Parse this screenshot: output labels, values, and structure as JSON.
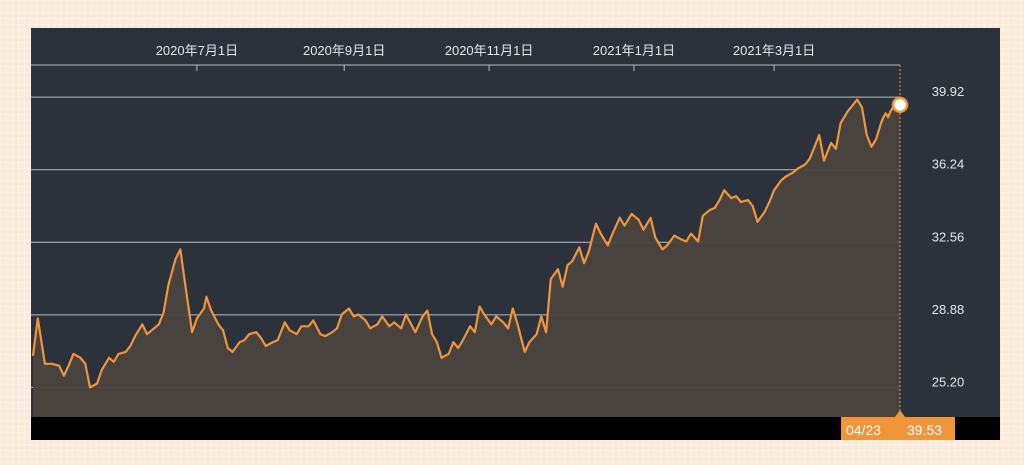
{
  "chart_data": {
    "type": "area",
    "x_tick_labels": [
      "2020年7月1日",
      "2020年9月1日",
      "2020年11月1日",
      "2021年1月1日",
      "2021年3月1日"
    ],
    "x_tick_dates": [
      "2020-07-01",
      "2020-09-01",
      "2020-11-01",
      "2021-01-01",
      "2021-03-01"
    ],
    "x_range": [
      "2020-04-23",
      "2021-04-23"
    ],
    "y_tick_labels": [
      "39.92",
      "36.24",
      "32.56",
      "28.88",
      "25.20"
    ],
    "y_ticks": [
      39.92,
      36.24,
      32.56,
      28.88,
      25.2
    ],
    "ylim": [
      23.7,
      41.6
    ],
    "grid": "horizontal",
    "series": [
      {
        "points": [
          [
            "2020-04-23",
            26.8
          ],
          [
            "2020-04-25",
            28.7
          ],
          [
            "2020-04-28",
            26.4
          ],
          [
            "2020-05-01",
            26.4
          ],
          [
            "2020-05-04",
            26.3
          ],
          [
            "2020-05-06",
            25.8
          ],
          [
            "2020-05-08",
            26.3
          ],
          [
            "2020-05-10",
            26.9
          ],
          [
            "2020-05-13",
            26.7
          ],
          [
            "2020-05-15",
            26.4
          ],
          [
            "2020-05-17",
            25.2
          ],
          [
            "2020-05-20",
            25.4
          ],
          [
            "2020-05-22",
            26.1
          ],
          [
            "2020-05-25",
            26.7
          ],
          [
            "2020-05-27",
            26.5
          ],
          [
            "2020-05-29",
            26.9
          ],
          [
            "2020-06-01",
            27.0
          ],
          [
            "2020-06-03",
            27.3
          ],
          [
            "2020-06-05",
            27.8
          ],
          [
            "2020-06-08",
            28.4
          ],
          [
            "2020-06-10",
            27.9
          ],
          [
            "2020-06-13",
            28.2
          ],
          [
            "2020-06-15",
            28.4
          ],
          [
            "2020-06-17",
            29.0
          ],
          [
            "2020-06-19",
            30.4
          ],
          [
            "2020-06-22",
            31.7
          ],
          [
            "2020-06-24",
            32.2
          ],
          [
            "2020-06-26",
            30.5
          ],
          [
            "2020-06-29",
            28.0
          ],
          [
            "2020-07-01",
            28.7
          ],
          [
            "2020-07-04",
            29.2
          ],
          [
            "2020-07-05",
            29.8
          ],
          [
            "2020-07-07",
            29.1
          ],
          [
            "2020-07-10",
            28.4
          ],
          [
            "2020-07-12",
            28.1
          ],
          [
            "2020-07-14",
            27.2
          ],
          [
            "2020-07-16",
            27.0
          ],
          [
            "2020-07-19",
            27.5
          ],
          [
            "2020-07-21",
            27.6
          ],
          [
            "2020-07-23",
            27.9
          ],
          [
            "2020-07-26",
            28.0
          ],
          [
            "2020-07-28",
            27.7
          ],
          [
            "2020-07-30",
            27.3
          ],
          [
            "2020-08-02",
            27.5
          ],
          [
            "2020-08-04",
            27.6
          ],
          [
            "2020-08-07",
            28.5
          ],
          [
            "2020-08-09",
            28.1
          ],
          [
            "2020-08-12",
            27.9
          ],
          [
            "2020-08-14",
            28.3
          ],
          [
            "2020-08-17",
            28.3
          ],
          [
            "2020-08-19",
            28.6
          ],
          [
            "2020-08-22",
            27.9
          ],
          [
            "2020-08-24",
            27.8
          ],
          [
            "2020-08-27",
            28.0
          ],
          [
            "2020-08-29",
            28.2
          ],
          [
            "2020-08-31",
            28.9
          ],
          [
            "2020-09-03",
            29.2
          ],
          [
            "2020-09-05",
            28.8
          ],
          [
            "2020-09-07",
            28.9
          ],
          [
            "2020-09-10",
            28.6
          ],
          [
            "2020-09-12",
            28.2
          ],
          [
            "2020-09-15",
            28.4
          ],
          [
            "2020-09-17",
            28.8
          ],
          [
            "2020-09-20",
            28.3
          ],
          [
            "2020-09-22",
            28.5
          ],
          [
            "2020-09-25",
            28.2
          ],
          [
            "2020-09-27",
            28.9
          ],
          [
            "2020-10-01",
            28.0
          ],
          [
            "2020-10-04",
            28.8
          ],
          [
            "2020-10-06",
            29.1
          ],
          [
            "2020-10-08",
            27.9
          ],
          [
            "2020-10-10",
            27.5
          ],
          [
            "2020-10-12",
            26.7
          ],
          [
            "2020-10-15",
            26.9
          ],
          [
            "2020-10-17",
            27.5
          ],
          [
            "2020-10-19",
            27.2
          ],
          [
            "2020-10-21",
            27.6
          ],
          [
            "2020-10-24",
            28.3
          ],
          [
            "2020-10-26",
            28.0
          ],
          [
            "2020-10-28",
            29.3
          ],
          [
            "2020-10-30",
            28.9
          ],
          [
            "2020-11-02",
            28.4
          ],
          [
            "2020-11-04",
            28.8
          ],
          [
            "2020-11-07",
            28.5
          ],
          [
            "2020-11-09",
            28.2
          ],
          [
            "2020-11-11",
            29.2
          ],
          [
            "2020-11-13",
            28.4
          ],
          [
            "2020-11-16",
            27.0
          ],
          [
            "2020-11-18",
            27.5
          ],
          [
            "2020-11-21",
            27.9
          ],
          [
            "2020-11-23",
            28.8
          ],
          [
            "2020-11-25",
            28.0
          ],
          [
            "2020-11-27",
            30.7
          ],
          [
            "2020-11-30",
            31.2
          ],
          [
            "2020-12-02",
            30.3
          ],
          [
            "2020-12-04",
            31.4
          ],
          [
            "2020-12-06",
            31.6
          ],
          [
            "2020-12-09",
            32.3
          ],
          [
            "2020-12-11",
            31.5
          ],
          [
            "2020-12-13",
            32.1
          ],
          [
            "2020-12-16",
            33.5
          ],
          [
            "2020-12-18",
            33.0
          ],
          [
            "2020-12-21",
            32.4
          ],
          [
            "2020-12-23",
            33.0
          ],
          [
            "2020-12-26",
            33.8
          ],
          [
            "2020-12-28",
            33.4
          ],
          [
            "2020-12-31",
            34.0
          ],
          [
            "2021-01-03",
            33.7
          ],
          [
            "2021-01-05",
            33.2
          ],
          [
            "2021-01-08",
            33.8
          ],
          [
            "2021-01-10",
            32.8
          ],
          [
            "2021-01-13",
            32.2
          ],
          [
            "2021-01-15",
            32.4
          ],
          [
            "2021-01-18",
            32.9
          ],
          [
            "2021-01-21",
            32.7
          ],
          [
            "2021-01-23",
            32.6
          ],
          [
            "2021-01-25",
            33.0
          ],
          [
            "2021-01-28",
            32.6
          ],
          [
            "2021-01-30",
            33.9
          ],
          [
            "2021-02-02",
            34.2
          ],
          [
            "2021-02-04",
            34.3
          ],
          [
            "2021-02-06",
            34.7
          ],
          [
            "2021-02-08",
            35.2
          ],
          [
            "2021-02-11",
            34.8
          ],
          [
            "2021-02-13",
            34.9
          ],
          [
            "2021-02-15",
            34.6
          ],
          [
            "2021-02-18",
            34.7
          ],
          [
            "2021-02-20",
            34.4
          ],
          [
            "2021-02-22",
            33.6
          ],
          [
            "2021-02-25",
            34.1
          ],
          [
            "2021-02-27",
            34.6
          ],
          [
            "2021-03-01",
            35.2
          ],
          [
            "2021-03-04",
            35.7
          ],
          [
            "2021-03-06",
            35.9
          ],
          [
            "2021-03-09",
            36.1
          ],
          [
            "2021-03-11",
            36.3
          ],
          [
            "2021-03-14",
            36.5
          ],
          [
            "2021-03-16",
            36.8
          ],
          [
            "2021-03-18",
            37.4
          ],
          [
            "2021-03-20",
            38.0
          ],
          [
            "2021-03-22",
            36.7
          ],
          [
            "2021-03-25",
            37.6
          ],
          [
            "2021-03-27",
            37.3
          ],
          [
            "2021-03-29",
            38.6
          ],
          [
            "2021-04-01",
            39.2
          ],
          [
            "2021-04-03",
            39.5
          ],
          [
            "2021-04-05",
            39.8
          ],
          [
            "2021-04-07",
            39.4
          ],
          [
            "2021-04-09",
            38.0
          ],
          [
            "2021-04-11",
            37.4
          ],
          [
            "2021-04-13",
            37.8
          ],
          [
            "2021-04-15",
            38.6
          ],
          [
            "2021-04-16",
            38.9
          ],
          [
            "2021-04-17",
            39.1
          ],
          [
            "2021-04-18",
            38.9
          ],
          [
            "2021-04-19",
            39.2
          ],
          [
            "2021-04-20",
            39.4
          ],
          [
            "2021-04-21",
            39.3
          ],
          [
            "2021-04-22",
            39.2
          ],
          [
            "2021-04-23",
            39.53
          ]
        ]
      }
    ],
    "last_point": {
      "date_label": "04/23",
      "value_label": "39.53"
    },
    "colors": {
      "line": "#f0953a",
      "area": "#4b4440",
      "background": "#2b323c",
      "grid": "#b9bec7",
      "badge": "#f0953a",
      "bottom_bar": "#000000"
    }
  }
}
